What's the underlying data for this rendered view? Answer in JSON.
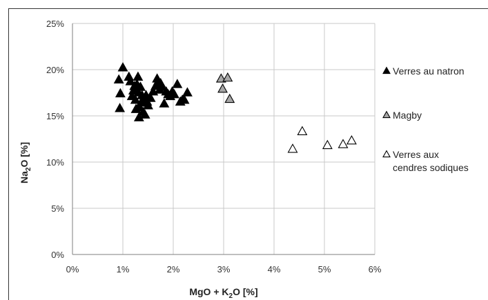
{
  "chart_data": {
    "type": "scatter",
    "title": "",
    "xlabel": {
      "main": "MgO + K",
      "sub": "2",
      "tail": "O [%]"
    },
    "ylabel": {
      "main": "Na",
      "sub": "2",
      "tail": "O [%]"
    },
    "xlim": [
      0,
      0.06
    ],
    "ylim": [
      0,
      0.25
    ],
    "x_ticks": [
      {
        "value": 0,
        "label": "0%"
      },
      {
        "value": 0.01,
        "label": "1%"
      },
      {
        "value": 0.02,
        "label": "2%"
      },
      {
        "value": 0.03,
        "label": "3%"
      },
      {
        "value": 0.04,
        "label": "4%"
      },
      {
        "value": 0.05,
        "label": "5%"
      },
      {
        "value": 0.06,
        "label": "6%"
      }
    ],
    "y_ticks": [
      {
        "value": 0,
        "label": "0%"
      },
      {
        "value": 0.05,
        "label": "5%"
      },
      {
        "value": 0.1,
        "label": "10%"
      },
      {
        "value": 0.15,
        "label": "15%"
      },
      {
        "value": 0.2,
        "label": "20%"
      },
      {
        "value": 0.25,
        "label": "25%"
      }
    ],
    "grid": "vertical and horizontal",
    "legend_position": "right",
    "series": [
      {
        "name": "Verres au natron",
        "marker": "filled-triangle",
        "color": "#000000",
        "points": [
          [
            0.0092,
            0.189
          ],
          [
            0.0095,
            0.174
          ],
          [
            0.0094,
            0.158
          ],
          [
            0.01,
            0.202
          ],
          [
            0.0112,
            0.192
          ],
          [
            0.0115,
            0.187
          ],
          [
            0.0118,
            0.171
          ],
          [
            0.0121,
            0.177
          ],
          [
            0.0123,
            0.182
          ],
          [
            0.0125,
            0.167
          ],
          [
            0.0126,
            0.157
          ],
          [
            0.0128,
            0.184
          ],
          [
            0.013,
            0.192
          ],
          [
            0.0131,
            0.175
          ],
          [
            0.0132,
            0.148
          ],
          [
            0.0133,
            0.159
          ],
          [
            0.0135,
            0.181
          ],
          [
            0.0136,
            0.164
          ],
          [
            0.0138,
            0.172
          ],
          [
            0.014,
            0.154
          ],
          [
            0.0142,
            0.167
          ],
          [
            0.0144,
            0.151
          ],
          [
            0.0146,
            0.172
          ],
          [
            0.0148,
            0.165
          ],
          [
            0.015,
            0.161
          ],
          [
            0.0155,
            0.169
          ],
          [
            0.016,
            0.176
          ],
          [
            0.0165,
            0.182
          ],
          [
            0.0168,
            0.19
          ],
          [
            0.017,
            0.187
          ],
          [
            0.0173,
            0.178
          ],
          [
            0.0175,
            0.185
          ],
          [
            0.0178,
            0.181
          ],
          [
            0.0182,
            0.163
          ],
          [
            0.0186,
            0.176
          ],
          [
            0.019,
            0.173
          ],
          [
            0.0194,
            0.171
          ],
          [
            0.0198,
            0.176
          ],
          [
            0.0202,
            0.173
          ],
          [
            0.0208,
            0.184
          ],
          [
            0.0214,
            0.165
          ],
          [
            0.0218,
            0.167
          ],
          [
            0.0222,
            0.167
          ],
          [
            0.0228,
            0.175
          ]
        ]
      },
      {
        "name": "Magby",
        "marker": "grey-triangle",
        "color": "#a6a6a6",
        "points": [
          [
            0.0295,
            0.19
          ],
          [
            0.0298,
            0.179
          ],
          [
            0.0308,
            0.191
          ],
          [
            0.0312,
            0.168
          ]
        ]
      },
      {
        "name": "Verres aux cendres sodiques",
        "marker": "open-triangle",
        "color": "#ffffff",
        "points": [
          [
            0.0437,
            0.114
          ],
          [
            0.0456,
            0.133
          ],
          [
            0.0506,
            0.118
          ],
          [
            0.0537,
            0.119
          ],
          [
            0.0554,
            0.123
          ]
        ]
      }
    ]
  },
  "legend": {
    "items": [
      {
        "lines": [
          "Verres au natron"
        ]
      },
      {
        "lines": [
          "Magby"
        ]
      },
      {
        "lines": [
          "Verres aux",
          "cendres sodiques"
        ]
      }
    ]
  }
}
